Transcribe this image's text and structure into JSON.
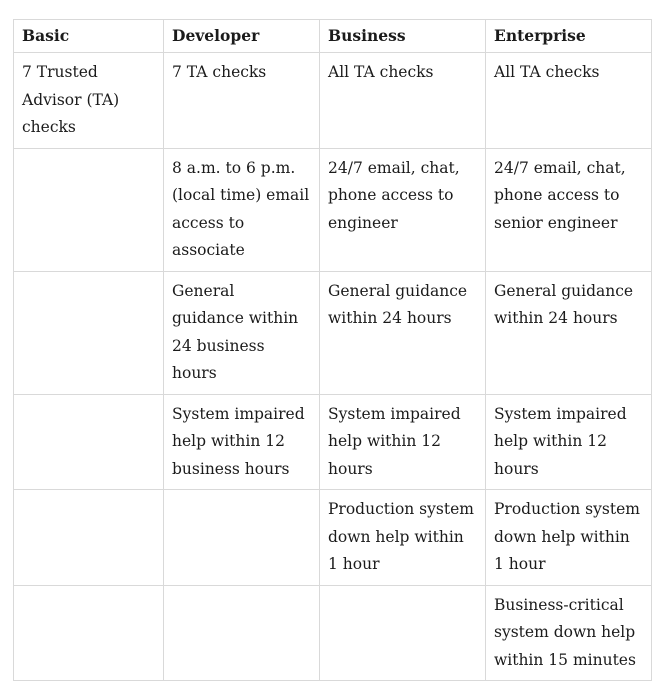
{
  "table": {
    "headers": [
      "Basic",
      "Developer",
      "Business",
      "Enterprise"
    ],
    "rows": [
      [
        "7 Trusted Advisor (TA) checks",
        "7 TA checks",
        "All TA checks",
        "All TA checks"
      ],
      [
        "",
        "8 a.m. to 6 p.m. (local time) email access to associate",
        "24/7 email, chat, phone access to engineer",
        "24/7 email, chat, phone access to senior engineer"
      ],
      [
        "",
        "General guidance within 24 business hours",
        "General guidance within 24 hours",
        "General guidance within 24 hours"
      ],
      [
        "",
        "System impaired help within 12 business hours",
        "System impaired help within 12 hours",
        "System impaired help within 12 hours"
      ],
      [
        "",
        "",
        "Production system down help within 1 hour",
        "Production system down help within 1 hour"
      ],
      [
        "",
        "",
        "",
        "Business-critical system down help within 15 minutes"
      ]
    ]
  }
}
